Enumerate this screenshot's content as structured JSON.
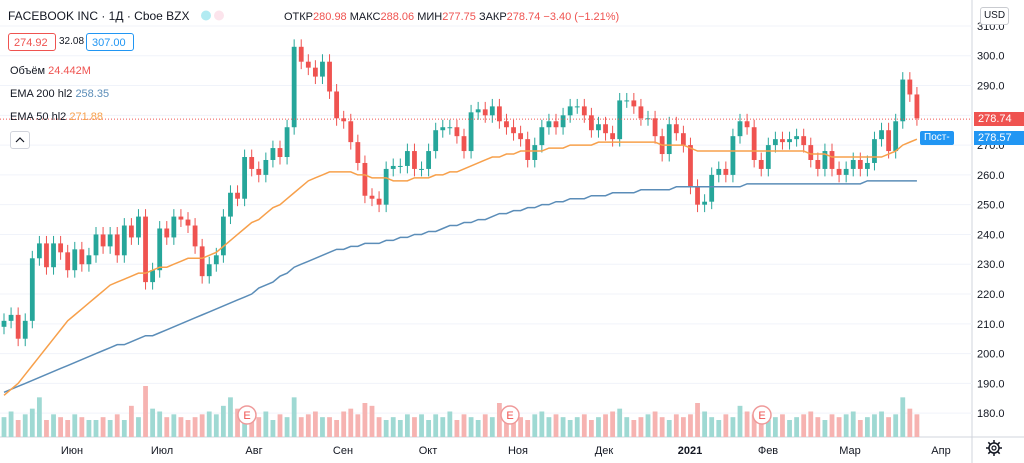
{
  "header": {
    "title": "FACEBOOK INC · 1Д · Cboe BZX",
    "open_label": "ОТКР",
    "open": "280.98",
    "high_label": "МАКС",
    "high": "288.06",
    "low_label": "МИН",
    "low": "277.75",
    "close_label": "ЗАКР",
    "close": "278.74",
    "change": "−3.40 (−1.21%)",
    "bid": "274.92",
    "spread": "32.08",
    "ask": "307.00"
  },
  "legend": {
    "volume_label": "Объём",
    "volume_value": "24.442M",
    "ema200_label": "EMA 200 hl2",
    "ema200_value": "258.35",
    "ema50_label": "EMA 50 hl2",
    "ema50_value": "271.88"
  },
  "axis": {
    "currency": "USD",
    "last_price": "278.74",
    "prepost_label": "Пост-",
    "prepost_price": "278.57"
  },
  "colors": {
    "up": "#26a69a",
    "down": "#ef5350",
    "ema50": "#f7a04b",
    "ema200": "#5b8db8",
    "post": "#2196f3"
  },
  "chart_data": {
    "type": "candlestick",
    "title": "FACEBOOK INC · 1Д · Cboe BZX",
    "ylim": [
      172,
      312
    ],
    "y_ticks": [
      180,
      190,
      200,
      210,
      220,
      230,
      240,
      250,
      260,
      270,
      280,
      290,
      300,
      310
    ],
    "x_labels": [
      "Июн",
      "Июл",
      "Авг",
      "Сен",
      "Окт",
      "Ноя",
      "Дек",
      "2021",
      "Фев",
      "Мар",
      "Апр"
    ],
    "earnings_marker": "E",
    "close_series": [
      211,
      213,
      205,
      211,
      232,
      237,
      229,
      237,
      234,
      228,
      235,
      230,
      233,
      240,
      236,
      240,
      233,
      243,
      239,
      246,
      224,
      228,
      242,
      239,
      246,
      245,
      243,
      236,
      226,
      230,
      233,
      246,
      254,
      252,
      266,
      262,
      260,
      265,
      269,
      266,
      276,
      303,
      298,
      296,
      293,
      298,
      288,
      279,
      278,
      271,
      264,
      253,
      252,
      250,
      262,
      263,
      263,
      268,
      262,
      262,
      268,
      275,
      276,
      276,
      273,
      268,
      281,
      282,
      280,
      283,
      278,
      276,
      274,
      272,
      265,
      270,
      276,
      278,
      276,
      280,
      283,
      283,
      280,
      275,
      277,
      274,
      272,
      285,
      285,
      283,
      279,
      279,
      273,
      267,
      277,
      274,
      270,
      256,
      250,
      251,
      260,
      262,
      260,
      273,
      278,
      276,
      265,
      262,
      270,
      272,
      271,
      272,
      273,
      270,
      265,
      262,
      268,
      262,
      260,
      262,
      265,
      262,
      264,
      272,
      275,
      268,
      278,
      292,
      287,
      279
    ],
    "ema50_series": [
      186,
      188,
      190,
      193,
      196,
      199,
      202,
      205,
      208,
      211,
      213,
      215,
      217,
      219,
      221,
      223,
      224,
      225,
      226,
      227,
      227,
      228,
      229,
      229,
      230,
      231,
      232,
      232,
      232,
      233,
      234,
      236,
      238,
      240,
      242,
      244,
      245,
      247,
      249,
      250,
      252,
      254,
      256,
      258,
      259,
      260,
      261,
      261,
      261,
      261,
      260,
      260,
      259,
      259,
      259,
      258,
      258,
      258,
      259,
      259,
      259,
      260,
      260,
      261,
      261,
      262,
      263,
      264,
      265,
      266,
      266,
      267,
      267,
      268,
      268,
      268,
      268,
      269,
      269,
      269,
      270,
      270,
      270,
      270,
      271,
      271,
      271,
      271,
      271,
      271,
      271,
      271,
      271,
      270,
      270,
      270,
      270,
      269,
      268,
      268,
      268,
      268,
      268,
      268,
      268,
      268,
      268,
      268,
      268,
      268,
      268,
      268,
      268,
      268,
      267,
      267,
      267,
      266,
      266,
      266,
      266,
      266,
      266,
      266,
      266,
      267,
      268,
      270,
      271,
      272
    ],
    "ema200_series": [
      187,
      188,
      189,
      190,
      191,
      192,
      193,
      194,
      195,
      196,
      197,
      198,
      199,
      200,
      201,
      202,
      203,
      203,
      204,
      205,
      206,
      206,
      207,
      208,
      209,
      210,
      211,
      212,
      213,
      214,
      215,
      216,
      217,
      218,
      219,
      220,
      222,
      223,
      224,
      226,
      227,
      229,
      230,
      231,
      232,
      233,
      234,
      235,
      235,
      236,
      236,
      237,
      237,
      237,
      238,
      238,
      239,
      239,
      240,
      240,
      241,
      241,
      242,
      243,
      243,
      244,
      244,
      245,
      245,
      246,
      247,
      247,
      248,
      248,
      249,
      249,
      250,
      250,
      251,
      251,
      252,
      252,
      252,
      253,
      253,
      253,
      254,
      254,
      254,
      254,
      255,
      255,
      255,
      255,
      255,
      256,
      256,
      256,
      256,
      256,
      256,
      256,
      256,
      256,
      256,
      257,
      257,
      257,
      257,
      257,
      257,
      257,
      257,
      257,
      257,
      257,
      257,
      257,
      257,
      257,
      257,
      257,
      258,
      258,
      258,
      258,
      258,
      258,
      258,
      258
    ],
    "volume_series": [
      14,
      18,
      12,
      16,
      20,
      28,
      12,
      16,
      14,
      12,
      16,
      14,
      12,
      12,
      14,
      12,
      16,
      12,
      22,
      14,
      36,
      20,
      18,
      14,
      16,
      14,
      12,
      14,
      16,
      18,
      16,
      22,
      28,
      20,
      16,
      14,
      14,
      18,
      12,
      16,
      14,
      28,
      14,
      16,
      18,
      14,
      14,
      12,
      18,
      20,
      16,
      24,
      22,
      14,
      12,
      14,
      12,
      16,
      14,
      16,
      12,
      16,
      14,
      18,
      12,
      16,
      14,
      12,
      16,
      14,
      24,
      20,
      18,
      14,
      12,
      16,
      18,
      14,
      16,
      14,
      12,
      14,
      16,
      12,
      14,
      16,
      18,
      20,
      14,
      12,
      14,
      16,
      18,
      14,
      12,
      16,
      14,
      16,
      24,
      18,
      14,
      12,
      16,
      14,
      22,
      18,
      16,
      14,
      12,
      14,
      16,
      12,
      14,
      16,
      18,
      14,
      12,
      16,
      14,
      16,
      18,
      12,
      14,
      16,
      18,
      14,
      16,
      28,
      20,
      16
    ]
  }
}
